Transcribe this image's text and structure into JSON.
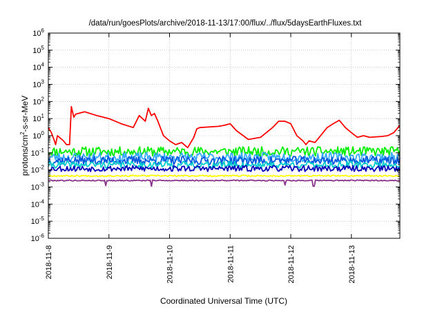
{
  "chart_data": {
    "type": "line",
    "title": "/data/run/goesPlots/archive/2018-11-13/17:00/flux/../flux/5daysEarthFluxes.txt",
    "xlabel": "Coordinated Universal Time (UTC)",
    "ylabel": {
      "prefix": "protons/cm",
      "sup": "2",
      "suffix": "-s-sr-MeV"
    },
    "y_scale": "log",
    "ylim": [
      1e-06,
      1000000.0
    ],
    "xlim_days": [
      0,
      5.8
    ],
    "grid": true,
    "legend": "none",
    "x_tick_labels": [
      {
        "label": "2018-11-8",
        "day": 0
      },
      {
        "label": "2018-11-9",
        "day": 1
      },
      {
        "label": "2018-11-10",
        "day": 2
      },
      {
        "label": "2018-11-11",
        "day": 3
      },
      {
        "label": "2018-11-12",
        "day": 4
      },
      {
        "label": "2018-11-13",
        "day": 5
      }
    ],
    "y_tick_labels": [
      {
        "base": "10",
        "exp": "6",
        "value": 1000000.0
      },
      {
        "base": "10",
        "exp": "5",
        "value": 100000.0
      },
      {
        "base": "10",
        "exp": "4",
        "value": 10000.0
      },
      {
        "base": "10",
        "exp": "3",
        "value": 1000.0
      },
      {
        "base": "10",
        "exp": "2",
        "value": 100.0
      },
      {
        "base": "10",
        "exp": "1",
        "value": 10.0
      },
      {
        "base": "10",
        "exp": "0",
        "value": 1.0
      },
      {
        "base": "10",
        "exp": "-1",
        "value": 0.1
      },
      {
        "base": "10",
        "exp": "-2",
        "value": 0.01
      },
      {
        "base": "10",
        "exp": "-3",
        "value": 0.001
      },
      {
        "base": "10",
        "exp": "-4",
        "value": 0.0001
      },
      {
        "base": "10",
        "exp": "-5",
        "value": 1e-05
      },
      {
        "base": "10",
        "exp": "-6",
        "value": 1e-06
      }
    ],
    "series": [
      {
        "color": "#ff0000",
        "x": [
          0.0,
          0.05,
          0.1,
          0.12,
          0.15,
          0.25,
          0.3,
          0.35,
          0.38,
          0.42,
          0.45,
          0.6,
          0.8,
          1.0,
          1.2,
          1.4,
          1.5,
          1.6,
          1.65,
          1.7,
          1.75,
          1.8,
          1.9,
          2.0,
          2.1,
          2.2,
          2.3,
          2.4,
          2.45,
          2.5,
          2.8,
          2.9,
          3.0,
          3.1,
          3.3,
          3.5,
          3.7,
          3.8,
          3.9,
          4.0,
          4.1,
          4.2,
          4.25,
          4.3,
          4.4,
          4.6,
          4.7,
          4.8,
          4.9,
          5.0,
          5.1,
          5.2,
          5.3,
          5.5,
          5.6,
          5.7,
          5.8
        ],
        "y": [
          3,
          1.5,
          0.5,
          0.3,
          1.0,
          0.5,
          0.3,
          0.3,
          50,
          12,
          18,
          25,
          15,
          10,
          5,
          3,
          15,
          7,
          40,
          15,
          20,
          8,
          1.0,
          0.5,
          0.3,
          0.4,
          0.2,
          0.8,
          2.5,
          3,
          3.5,
          4,
          5,
          2,
          0.6,
          0.8,
          3,
          7,
          7,
          5,
          1.0,
          0.5,
          0.3,
          0.5,
          0.4,
          3,
          5,
          8,
          3,
          1.5,
          0.8,
          1.0,
          0.8,
          0.9,
          1.0,
          1.5,
          4
        ]
      },
      {
        "color": "#00ee00",
        "base": 0.12,
        "amp": 0.55,
        "seed": 11,
        "x_end": 5.8,
        "samples": 300
      },
      {
        "color": "#33aaff",
        "base": 0.055,
        "amp": 0.55,
        "seed": 23,
        "x_end": 5.8,
        "samples": 300
      },
      {
        "color": "#0055dd",
        "base": 0.035,
        "amp": 0.5,
        "seed": 37,
        "x_end": 5.8,
        "samples": 300
      },
      {
        "color": "#00cccc",
        "base": 0.02,
        "amp": 0.4,
        "seed": 41,
        "x_end": 5.8,
        "samples": 300
      },
      {
        "color": "#0000bb",
        "base": 0.012,
        "amp": 0.35,
        "seed": 53,
        "x_end": 5.8,
        "samples": 300
      },
      {
        "color": "#ffff00",
        "base": 0.0045,
        "amp": 0.08,
        "seed": 67,
        "x_end": 5.8,
        "samples": 300
      },
      {
        "color": "#883388",
        "base": 0.0024,
        "amp": 0.06,
        "seed": 79,
        "x_end": 5.8,
        "samples": 300,
        "dips": [
          [
            0.95,
            0.0012
          ],
          [
            1.7,
            0.0011
          ],
          [
            3.9,
            0.0013
          ],
          [
            4.38,
            0.0011
          ]
        ]
      }
    ]
  }
}
